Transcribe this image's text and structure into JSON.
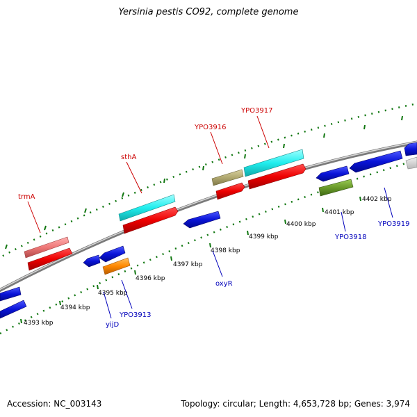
{
  "title": "Yersinia pestis CO92, complete genome",
  "accession": "Accession: NC_003143",
  "summary": "Topology: circular; Length: 4,653,728 bp; Genes: 3,974",
  "colors": {
    "forward_label": "#cc0000",
    "reverse_label": "#0000bb",
    "tick": "#117711",
    "backbone": "#888888",
    "blue_gene": "#0a14d8",
    "red_gene": "#ee0000",
    "cyan_gene": "#20eeee",
    "pink_gene": "#ee7777",
    "khaki_gene": "#b0a870",
    "olive_gene": "#6a9a2a",
    "orange_gene": "#ff8800"
  },
  "scale_labels": [
    "4393 kbp",
    "4394 kbp",
    "4395 kbp",
    "4396 kbp",
    "4397 kbp",
    "4398 kbp",
    "4399 kbp",
    "4400 kbp",
    "4401 kbp",
    "4402 kbp"
  ],
  "forward_gene_labels": [
    "trmA",
    "sthA",
    "YPO3916",
    "YPO3917"
  ],
  "reverse_gene_labels": [
    "yijD",
    "YPO3913",
    "oxyR",
    "YPO3918",
    "YPO3919"
  ]
}
